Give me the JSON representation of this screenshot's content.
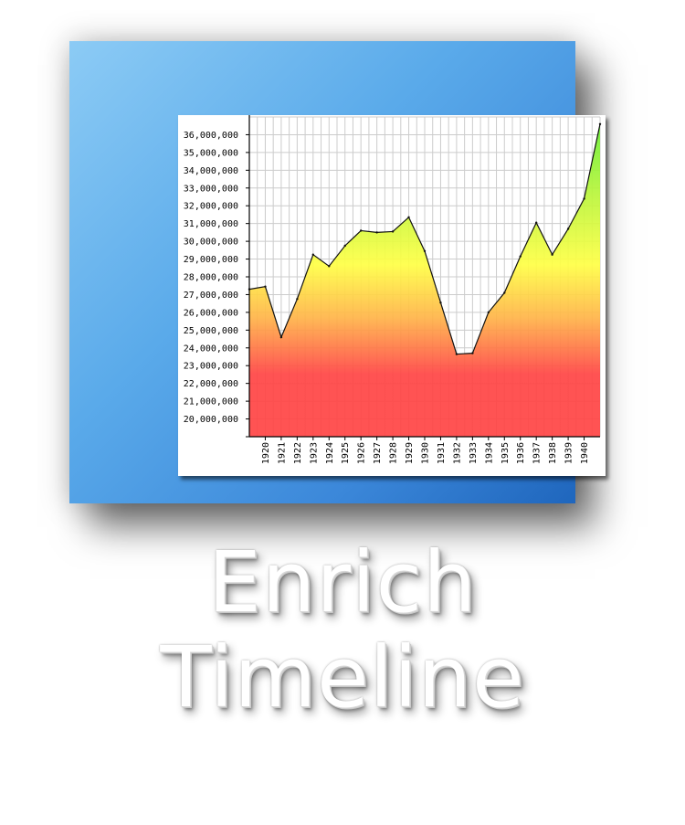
{
  "caption": {
    "line1": "Enrich",
    "line2": "Timeline"
  },
  "colors": {
    "tile_light": "#8ccbf5",
    "tile_dark": "#1f66bd",
    "fill_top": "#66ee33",
    "fill_mid": "#ffff44",
    "fill_bottom": "#ff4444",
    "grid": "#cccccc"
  },
  "chart_data": {
    "type": "area",
    "title": "",
    "xlabel": "",
    "ylabel": "",
    "grid": true,
    "ylim": [
      19000000,
      37000000
    ],
    "y_ticks": [
      "20,000,000",
      "21,000,000",
      "22,000,000",
      "23,000,000",
      "24,000,000",
      "25,000,000",
      "26,000,000",
      "27,000,000",
      "28,000,000",
      "29,000,000",
      "30,000,000",
      "31,000,000",
      "32,000,000",
      "33,000,000",
      "34,000,000",
      "35,000,000",
      "36,000,000"
    ],
    "x_tick_labels": [
      "1920",
      "1921",
      "1922",
      "1923",
      "1924",
      "1925",
      "1926",
      "1927",
      "1928",
      "1929",
      "1930",
      "1931",
      "1932",
      "1933",
      "1934",
      "1935",
      "1936",
      "1937",
      "1938",
      "1939",
      "1940"
    ],
    "x": [
      1919,
      1920,
      1921,
      1922,
      1923,
      1924,
      1925,
      1926,
      1927,
      1928,
      1929,
      1930,
      1931,
      1932,
      1933,
      1934,
      1935,
      1936,
      1937,
      1938,
      1939,
      1940,
      1941
    ],
    "values": [
      27300000,
      27450000,
      24600000,
      26750000,
      29250000,
      28600000,
      29750000,
      30600000,
      30500000,
      30550000,
      31350000,
      29450000,
      26550000,
      23650000,
      23700000,
      26000000,
      27100000,
      29150000,
      31050000,
      29250000,
      30700000,
      32400000,
      36600000
    ]
  }
}
